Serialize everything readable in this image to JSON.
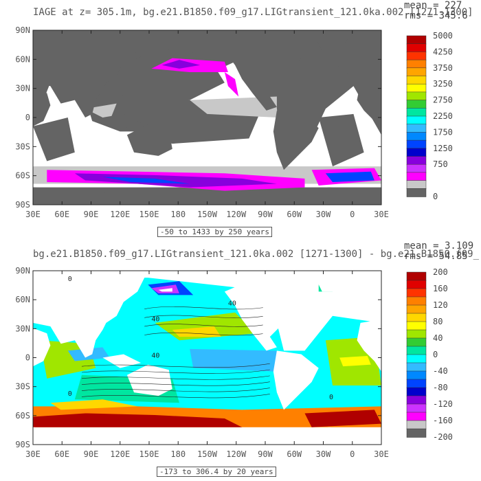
{
  "chart_data": [
    {
      "type": "heatmap",
      "title": "IAGE at z= 305.1m, bg.e21.B1850.f09_g17.LIGtransient_121.0ka.002 [1271-1300]",
      "stats": {
        "mean": "mean = 227",
        "rms": "rms = 345.6"
      },
      "range_caption": "-50 to 1433 by 250 years",
      "x_ticks": [
        "30E",
        "60E",
        "90E",
        "120E",
        "150E",
        "180",
        "150W",
        "120W",
        "90W",
        "60W",
        "30W",
        "0",
        "30E"
      ],
      "y_ticks": [
        "90N",
        "60N",
        "30N",
        "0",
        "30S",
        "60S",
        "90S"
      ],
      "colorbar": {
        "labels": [
          "5000",
          "4250",
          "3750",
          "3250",
          "2750",
          "2250",
          "1750",
          "1250",
          "750",
          "0"
        ],
        "colors": [
          "#b00000",
          "#e00000",
          "#ff3300",
          "#ff8000",
          "#ffa500",
          "#ffd700",
          "#ffff00",
          "#a0e600",
          "#33cc33",
          "#00e6a0",
          "#00ffff",
          "#33bbff",
          "#0088ff",
          "#0044ff",
          "#0000cc",
          "#8800dd",
          "#cc33ff",
          "#ff00ff",
          "#c8c8c8",
          "#646464"
        ]
      }
    },
    {
      "type": "heatmap",
      "title": "bg.e21.B1850.f09_g17.LIGtransient_121.0ka.002 [1271-1300] - bg.e21.B1850.f09_",
      "stats": {
        "mean": "mean = 3.109",
        "rms": "rms = 54.85"
      },
      "range_caption": "-173 to 306.4 by 20 years",
      "x_ticks": [
        "30E",
        "60E",
        "90E",
        "120E",
        "150E",
        "180",
        "150W",
        "120W",
        "90W",
        "60W",
        "30W",
        "0",
        "30E"
      ],
      "y_ticks": [
        "90N",
        "60N",
        "30N",
        "0",
        "30S",
        "60S",
        "90S"
      ],
      "contour_labels": [
        "0",
        "40",
        "40",
        "40",
        "0",
        "0"
      ],
      "colorbar": {
        "labels": [
          "200",
          "160",
          "120",
          "80",
          "40",
          "0",
          "-40",
          "-80",
          "-120",
          "-160",
          "-200"
        ],
        "colors": [
          "#b00000",
          "#e00000",
          "#ff3300",
          "#ff8000",
          "#ffa500",
          "#ffd700",
          "#ffff00",
          "#a0e600",
          "#33cc33",
          "#00e6a0",
          "#00ffff",
          "#33bbff",
          "#0088ff",
          "#0044ff",
          "#0000cc",
          "#8800dd",
          "#cc33ff",
          "#ff00ff",
          "#c8c8c8",
          "#646464"
        ]
      }
    }
  ]
}
